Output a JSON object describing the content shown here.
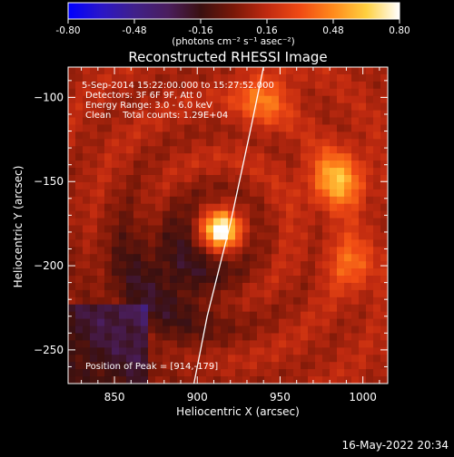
{
  "colorbar": {
    "ticks": [
      "-0.80",
      "-0.48",
      "-0.16",
      "0.16",
      "0.48",
      "0.80"
    ],
    "tick_values": [
      -0.8,
      -0.48,
      -0.16,
      0.16,
      0.48,
      0.8
    ],
    "range": [
      -0.8,
      0.8
    ],
    "units_label": "(photons cm⁻² s⁻¹ asec⁻²)",
    "stops": [
      "#0000ff",
      "#2a16c8",
      "#40208a",
      "#4a1e5e",
      "#3a1010",
      "#7a1808",
      "#c02a10",
      "#f04a14",
      "#ff8a1c",
      "#ffd040",
      "#ffffff"
    ]
  },
  "footer": {
    "timestamp": "16-May-2022 20:34"
  },
  "chart_data": {
    "type": "heatmap",
    "title": "Reconstructed RHESSI Image",
    "xlabel": "Heliocentric X (arcsec)",
    "ylabel": "Heliocentric Y (arcsec)",
    "xlim": [
      822,
      1015
    ],
    "ylim": [
      -270,
      -82
    ],
    "x_ticks": [
      850,
      900,
      950,
      1000
    ],
    "y_ticks": [
      -100,
      -150,
      -200,
      -250
    ],
    "annotations": [
      "5-Sep-2014 15:22:00.000 to 15:27:52.000",
      "Detectors: 3F 6F 9F, Att 0",
      "Energy Range: 3.0 - 6.0 keV",
      "Clean    Total counts: 1.29E+04"
    ],
    "peak_label": "Position of Peak = [914,-179]",
    "peak": {
      "x": 914,
      "y": -179,
      "value": 0.8
    },
    "secondary_sources": [
      {
        "x": 984,
        "y": -149,
        "value": 0.45
      },
      {
        "x": 940,
        "y": -100,
        "value": 0.3
      },
      {
        "x": 995,
        "y": -198,
        "value": 0.25
      }
    ],
    "negative_region": {
      "x": 880,
      "y": -210,
      "value": -0.3
    },
    "limb": [
      [
        940,
        -82
      ],
      [
        932,
        -120
      ],
      [
        920,
        -175
      ],
      [
        906,
        -230
      ],
      [
        898,
        -270
      ]
    ]
  }
}
